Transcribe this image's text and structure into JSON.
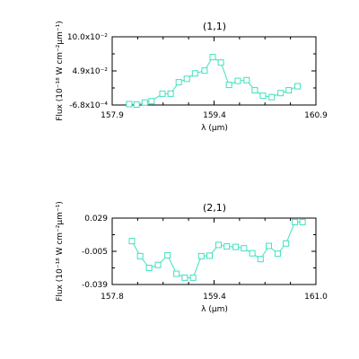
{
  "chart_data": [
    {
      "type": "line",
      "title": "(1,1)",
      "xlabel": "λ (μm)",
      "ylabel": "Flux (10⁻¹⁸ W cm⁻²μm⁻¹)",
      "xlim": [
        157.9,
        160.9
      ],
      "ylim": [
        -0.00068,
        0.1
      ],
      "x_ticks": [
        "157.9",
        "159.4",
        "160.9"
      ],
      "y_ticks": [
        "-6.8x10⁻⁴",
        "4.9x10⁻²",
        "10.0x10⁻²"
      ],
      "line_color": "#40e0c0",
      "marker": "square",
      "series": [
        {
          "x": [
            158.15,
            158.26,
            158.38,
            158.48,
            158.64,
            158.76,
            158.88,
            159.0,
            159.12,
            159.26,
            159.38,
            159.5,
            159.62,
            159.75,
            159.88,
            160.0,
            160.12,
            160.25,
            160.38,
            160.5,
            160.63
          ],
          "y": [
            0.0007,
            0.0,
            0.003,
            0.005,
            0.016,
            0.016,
            0.033,
            0.038,
            0.046,
            0.05,
            0.07,
            0.062,
            0.029,
            0.035,
            0.036,
            0.021,
            0.013,
            0.011,
            0.017,
            0.021,
            0.027
          ]
        }
      ]
    },
    {
      "type": "line",
      "title": "(2,1)",
      "xlabel": "λ (μm)",
      "ylabel": "Flux (10⁻¹⁸ W cm⁻²μm⁻¹)",
      "xlim": [
        157.8,
        161.0
      ],
      "ylim": [
        -0.039,
        0.029
      ],
      "x_ticks": [
        "157.8",
        "159.4",
        "161.0"
      ],
      "y_ticks": [
        "-0.039",
        "-0.005",
        "0.029"
      ],
      "line_color": "#40e0c0",
      "marker": "square",
      "series": [
        {
          "x": [
            158.11,
            158.24,
            158.38,
            158.52,
            158.67,
            158.81,
            158.94,
            159.07,
            159.2,
            159.33,
            159.47,
            159.6,
            159.74,
            159.87,
            160.0,
            160.13,
            160.26,
            160.4,
            160.53,
            160.67,
            160.79
          ],
          "y": [
            0.0055,
            -0.01,
            -0.022,
            -0.019,
            -0.009,
            -0.028,
            -0.032,
            -0.032,
            -0.01,
            -0.0095,
            0.0015,
            0.0,
            -0.0005,
            -0.002,
            -0.007,
            -0.013,
            0.0005,
            -0.0075,
            0.003,
            0.025,
            0.025
          ]
        }
      ]
    }
  ]
}
